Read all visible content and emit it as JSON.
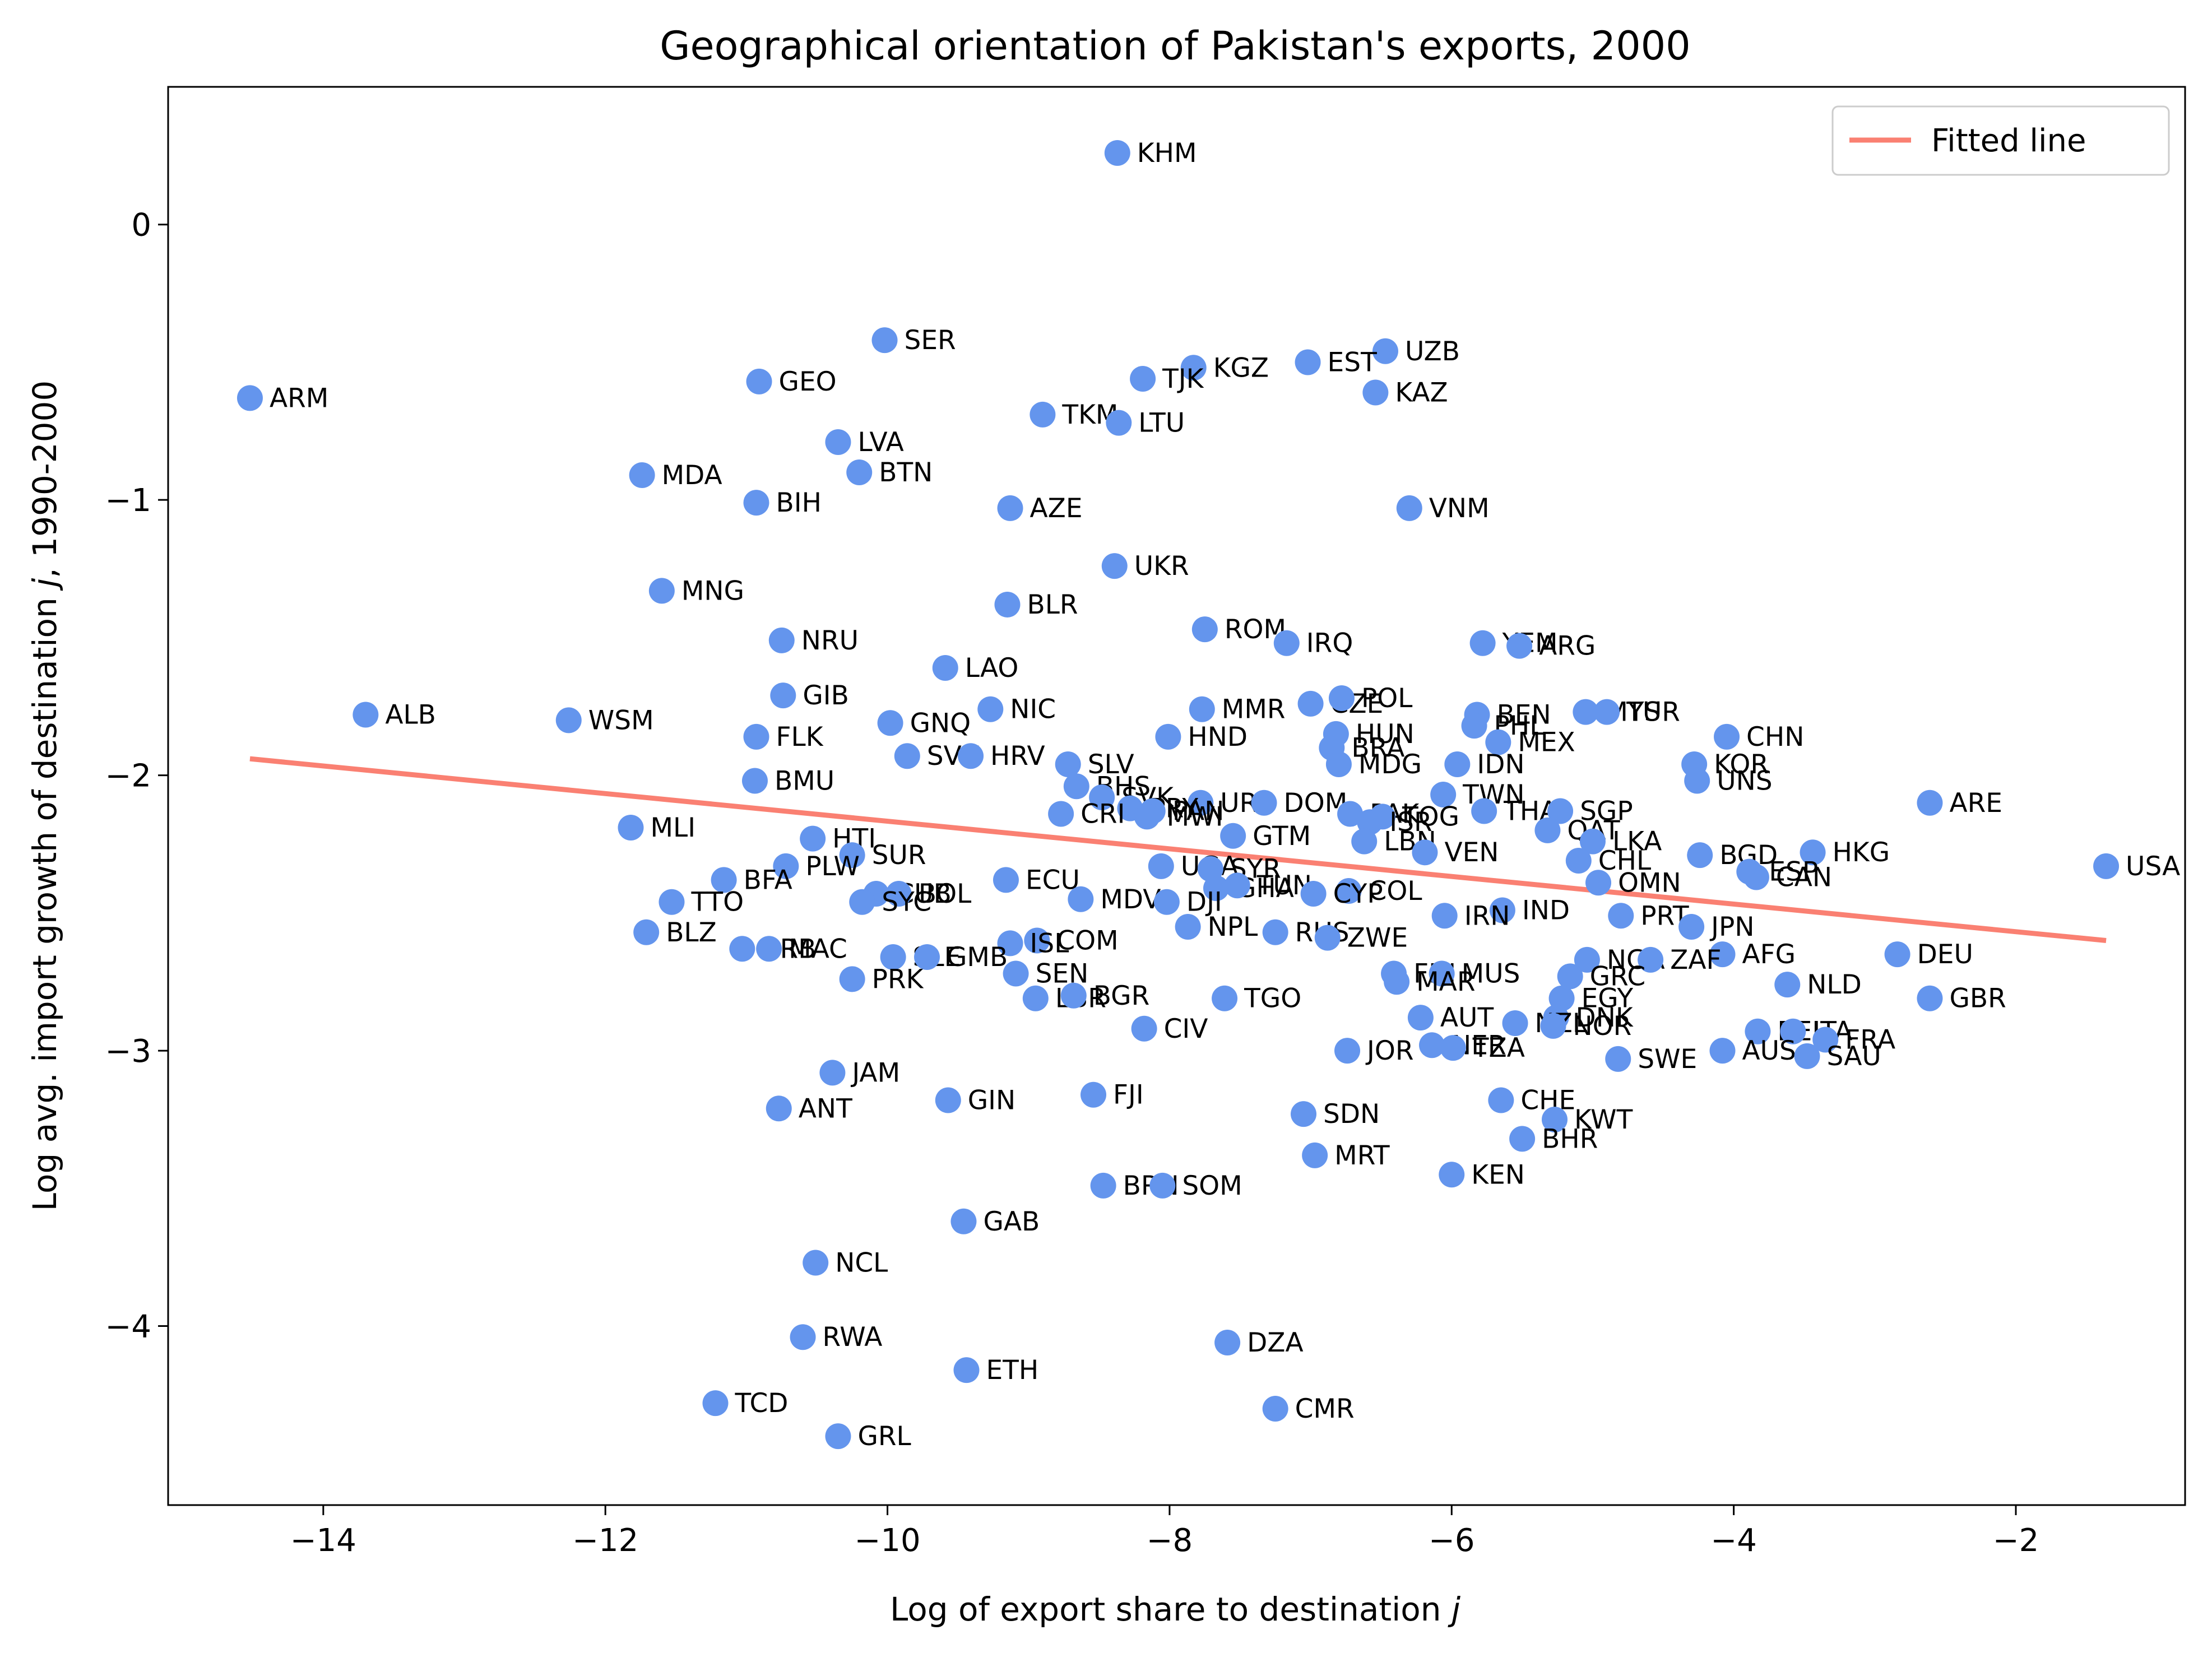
{
  "chart_data": {
    "type": "scatter",
    "title": "Geographical orientation of Pakistan's exports, 2000",
    "xlabel_main": "Log of export share to destination ",
    "xlabel_var": "j",
    "ylabel_main": "Log avg. import growth of destination ",
    "ylabel_var": "j",
    "ylabel_tail": ", 1990-2000",
    "xlim": [
      -15.1,
      -0.8
    ],
    "ylim": [
      -4.65,
      0.5
    ],
    "xticks": [
      -14,
      -12,
      -10,
      -8,
      -6,
      -4,
      -2
    ],
    "yticks": [
      0,
      -1,
      -2,
      -3,
      -4
    ],
    "xtick_labels": [
      "−14",
      "−12",
      "−10",
      "−8",
      "−6",
      "−4",
      "−2"
    ],
    "ytick_labels": [
      "0",
      "−1",
      "−2",
      "−3",
      "−4"
    ],
    "point_color": "#6495ED",
    "line_color": "#FA8072",
    "legend": {
      "label": "Fitted line",
      "position": "upper right"
    },
    "fitted_line": {
      "x": [
        -14.52,
        -1.36
      ],
      "y": [
        -1.94,
        -2.6
      ]
    },
    "points": [
      {
        "label": "KHM",
        "x": -8.37,
        "y": 0.26
      },
      {
        "label": "SER",
        "x": -10.02,
        "y": -0.42
      },
      {
        "label": "GEO",
        "x": -10.91,
        "y": -0.57
      },
      {
        "label": "ARM",
        "x": -14.52,
        "y": -0.63
      },
      {
        "label": "UZB",
        "x": -6.47,
        "y": -0.46
      },
      {
        "label": "EST",
        "x": -7.02,
        "y": -0.5
      },
      {
        "label": "KGZ",
        "x": -7.83,
        "y": -0.52
      },
      {
        "label": "TJK",
        "x": -8.19,
        "y": -0.56
      },
      {
        "label": "KAZ",
        "x": -6.54,
        "y": -0.61
      },
      {
        "label": "TKM",
        "x": -8.9,
        "y": -0.69
      },
      {
        "label": "LTU",
        "x": -8.36,
        "y": -0.72
      },
      {
        "label": "LVA",
        "x": -10.35,
        "y": -0.79
      },
      {
        "label": "MDA",
        "x": -11.74,
        "y": -0.91
      },
      {
        "label": "BTN",
        "x": -10.2,
        "y": -0.9
      },
      {
        "label": "BIH",
        "x": -10.93,
        "y": -1.01
      },
      {
        "label": "AZE",
        "x": -9.13,
        "y": -1.03
      },
      {
        "label": "VNM",
        "x": -6.3,
        "y": -1.03
      },
      {
        "label": "UKR",
        "x": -8.39,
        "y": -1.24
      },
      {
        "label": "MNG",
        "x": -11.6,
        "y": -1.33
      },
      {
        "label": "BLR",
        "x": -9.15,
        "y": -1.38
      },
      {
        "label": "ROM",
        "x": -7.75,
        "y": -1.47
      },
      {
        "label": "IRQ",
        "x": -7.17,
        "y": -1.52
      },
      {
        "label": "NRU",
        "x": -10.75,
        "y": -1.51
      },
      {
        "label": "YEM",
        "x": -5.78,
        "y": -1.52
      },
      {
        "label": "ARG",
        "x": -5.52,
        "y": -1.53
      },
      {
        "label": "LAO",
        "x": -9.59,
        "y": -1.61
      },
      {
        "label": "GIB",
        "x": -10.74,
        "y": -1.71
      },
      {
        "label": "NIC",
        "x": -9.27,
        "y": -1.76
      },
      {
        "label": "MMR",
        "x": -7.77,
        "y": -1.76
      },
      {
        "label": "CZE",
        "x": -7.0,
        "y": -1.74
      },
      {
        "label": "POL",
        "x": -6.78,
        "y": -1.72
      },
      {
        "label": "BEN",
        "x": -5.82,
        "y": -1.78
      },
      {
        "label": "PHL",
        "x": -5.84,
        "y": -1.82
      },
      {
        "label": "MYS",
        "x": -5.05,
        "y": -1.77
      },
      {
        "label": "TUR",
        "x": -4.9,
        "y": -1.77
      },
      {
        "label": "ALB",
        "x": -13.7,
        "y": -1.78
      },
      {
        "label": "WSM",
        "x": -12.26,
        "y": -1.8
      },
      {
        "label": "GNQ",
        "x": -9.98,
        "y": -1.81
      },
      {
        "label": "FLK",
        "x": -10.93,
        "y": -1.86
      },
      {
        "label": "HND",
        "x": -8.01,
        "y": -1.86
      },
      {
        "label": "HUN",
        "x": -6.82,
        "y": -1.85
      },
      {
        "label": "MEX",
        "x": -5.67,
        "y": -1.88
      },
      {
        "label": "CHN",
        "x": -4.05,
        "y": -1.86
      },
      {
        "label": "BRA",
        "x": -6.85,
        "y": -1.9
      },
      {
        "label": "SVN",
        "x": -9.86,
        "y": -1.93
      },
      {
        "label": "HRV",
        "x": -9.41,
        "y": -1.93
      },
      {
        "label": "SLV",
        "x": -8.72,
        "y": -1.96
      },
      {
        "label": "MDG",
        "x": -6.8,
        "y": -1.96
      },
      {
        "label": "IDN",
        "x": -5.96,
        "y": -1.96
      },
      {
        "label": "KOR",
        "x": -4.28,
        "y": -1.96
      },
      {
        "label": "UNS",
        "x": -4.26,
        "y": -2.02
      },
      {
        "label": "BMU",
        "x": -10.94,
        "y": -2.02
      },
      {
        "label": "BHS",
        "x": -8.66,
        "y": -2.04
      },
      {
        "label": "SVK",
        "x": -8.48,
        "y": -2.08
      },
      {
        "label": "TWN",
        "x": -6.06,
        "y": -2.07
      },
      {
        "label": "URY",
        "x": -7.78,
        "y": -2.1
      },
      {
        "label": "DOM",
        "x": -7.33,
        "y": -2.1
      },
      {
        "label": "PRY",
        "x": -8.28,
        "y": -2.12
      },
      {
        "label": "PAN",
        "x": -8.12,
        "y": -2.13
      },
      {
        "label": "MWI",
        "x": -8.16,
        "y": -2.15
      },
      {
        "label": "ARE",
        "x": -2.61,
        "y": -2.1
      },
      {
        "label": "THA",
        "x": -5.77,
        "y": -2.13
      },
      {
        "label": "SGP",
        "x": -5.23,
        "y": -2.13
      },
      {
        "label": "CRI",
        "x": -8.77,
        "y": -2.14
      },
      {
        "label": "PAK",
        "x": -6.72,
        "y": -2.14
      },
      {
        "label": "TOG",
        "x": -6.49,
        "y": -2.15
      },
      {
        "label": "ISR",
        "x": -6.58,
        "y": -2.17
      },
      {
        "label": "QAT",
        "x": -5.32,
        "y": -2.2
      },
      {
        "label": "MLI",
        "x": -11.82,
        "y": -2.19
      },
      {
        "label": "HTI",
        "x": -10.53,
        "y": -2.23
      },
      {
        "label": "GTM",
        "x": -7.55,
        "y": -2.22
      },
      {
        "label": "LKA",
        "x": -5.0,
        "y": -2.24
      },
      {
        "label": "LBN",
        "x": -6.62,
        "y": -2.24
      },
      {
        "label": "SUR",
        "x": -10.25,
        "y": -2.29
      },
      {
        "label": "VEN",
        "x": -6.19,
        "y": -2.28
      },
      {
        "label": "BGD",
        "x": -4.24,
        "y": -2.29
      },
      {
        "label": "HKG",
        "x": -3.44,
        "y": -2.28
      },
      {
        "label": "CHL",
        "x": -5.1,
        "y": -2.31
      },
      {
        "label": "USA",
        "x": -1.36,
        "y": -2.33
      },
      {
        "label": "PLW",
        "x": -10.72,
        "y": -2.33
      },
      {
        "label": "UGA",
        "x": -8.06,
        "y": -2.33
      },
      {
        "label": "SYR",
        "x": -7.71,
        "y": -2.34
      },
      {
        "label": "ESP",
        "x": -3.89,
        "y": -2.35
      },
      {
        "label": "CAN",
        "x": -3.84,
        "y": -2.37
      },
      {
        "label": "BFA",
        "x": -11.16,
        "y": -2.38
      },
      {
        "label": "ECU",
        "x": -9.16,
        "y": -2.38
      },
      {
        "label": "OMN",
        "x": -4.96,
        "y": -2.39
      },
      {
        "label": "GHA",
        "x": -7.67,
        "y": -2.41
      },
      {
        "label": "TUN",
        "x": -7.52,
        "y": -2.4
      },
      {
        "label": "COL",
        "x": -6.73,
        "y": -2.42
      },
      {
        "label": "CYP",
        "x": -6.98,
        "y": -2.43
      },
      {
        "label": "CUB",
        "x": -10.08,
        "y": -2.43
      },
      {
        "label": "BOL",
        "x": -9.92,
        "y": -2.43
      },
      {
        "label": "TTO",
        "x": -11.53,
        "y": -2.46
      },
      {
        "label": "SYC",
        "x": -10.18,
        "y": -2.46
      },
      {
        "label": "MDV",
        "x": -8.63,
        "y": -2.45
      },
      {
        "label": "DJI",
        "x": -8.02,
        "y": -2.46
      },
      {
        "label": "IND",
        "x": -5.64,
        "y": -2.49
      },
      {
        "label": "IRN",
        "x": -6.05,
        "y": -2.51
      },
      {
        "label": "PRT",
        "x": -4.8,
        "y": -2.51
      },
      {
        "label": "NPL",
        "x": -7.87,
        "y": -2.55
      },
      {
        "label": "JPN",
        "x": -4.3,
        "y": -2.55
      },
      {
        "label": "BLZ",
        "x": -11.71,
        "y": -2.57
      },
      {
        "label": "RUS",
        "x": -7.25,
        "y": -2.57
      },
      {
        "label": "ZWE",
        "x": -6.88,
        "y": -2.59
      },
      {
        "label": "COM",
        "x": -8.94,
        "y": -2.6
      },
      {
        "label": "ISL",
        "x": -9.13,
        "y": -2.61
      },
      {
        "label": "BRB",
        "x": -11.03,
        "y": -2.63
      },
      {
        "label": "MAC",
        "x": -10.84,
        "y": -2.63
      },
      {
        "label": "SLE",
        "x": -9.96,
        "y": -2.66
      },
      {
        "label": "GMB",
        "x": -9.72,
        "y": -2.66
      },
      {
        "label": "AFG",
        "x": -4.08,
        "y": -2.65
      },
      {
        "label": "DEU",
        "x": -2.84,
        "y": -2.65
      },
      {
        "label": "NGA",
        "x": -5.04,
        "y": -2.67
      },
      {
        "label": "ZAF",
        "x": -4.59,
        "y": -2.67
      },
      {
        "label": "SEN",
        "x": -9.09,
        "y": -2.72
      },
      {
        "label": "FIN",
        "x": -6.41,
        "y": -2.72
      },
      {
        "label": "MUS",
        "x": -6.07,
        "y": -2.72
      },
      {
        "label": "GRC",
        "x": -5.16,
        "y": -2.73
      },
      {
        "label": "PRK",
        "x": -10.25,
        "y": -2.74
      },
      {
        "label": "MAR",
        "x": -6.39,
        "y": -2.75
      },
      {
        "label": "NLD",
        "x": -3.62,
        "y": -2.76
      },
      {
        "label": "LBR",
        "x": -8.95,
        "y": -2.81
      },
      {
        "label": "BGR",
        "x": -8.68,
        "y": -2.8
      },
      {
        "label": "TGO",
        "x": -7.61,
        "y": -2.81
      },
      {
        "label": "EGY",
        "x": -5.22,
        "y": -2.81
      },
      {
        "label": "GBR",
        "x": -2.61,
        "y": -2.81
      },
      {
        "label": "AUT",
        "x": -6.22,
        "y": -2.88
      },
      {
        "label": "DNK",
        "x": -5.26,
        "y": -2.88
      },
      {
        "label": "NZL",
        "x": -5.55,
        "y": -2.9
      },
      {
        "label": "NOR",
        "x": -5.28,
        "y": -2.91
      },
      {
        "label": "CIV",
        "x": -8.18,
        "y": -2.92
      },
      {
        "label": "BEL",
        "x": -3.83,
        "y": -2.93
      },
      {
        "label": "ITA",
        "x": -3.58,
        "y": -2.93
      },
      {
        "label": "FRA",
        "x": -3.35,
        "y": -2.96
      },
      {
        "label": "NER",
        "x": -6.14,
        "y": -2.98
      },
      {
        "label": "TZA",
        "x": -5.99,
        "y": -2.99
      },
      {
        "label": "JOR",
        "x": -6.74,
        "y": -3.0
      },
      {
        "label": "AUS",
        "x": -4.08,
        "y": -3.0
      },
      {
        "label": "SAU",
        "x": -3.48,
        "y": -3.02
      },
      {
        "label": "SWE",
        "x": -4.82,
        "y": -3.03
      },
      {
        "label": "JAM",
        "x": -10.39,
        "y": -3.08
      },
      {
        "label": "FJI",
        "x": -8.54,
        "y": -3.16
      },
      {
        "label": "GIN",
        "x": -9.57,
        "y": -3.18
      },
      {
        "label": "CHE",
        "x": -5.65,
        "y": -3.18
      },
      {
        "label": "ANT",
        "x": -10.77,
        "y": -3.21
      },
      {
        "label": "SDN",
        "x": -7.05,
        "y": -3.23
      },
      {
        "label": "KWT",
        "x": -5.27,
        "y": -3.25
      },
      {
        "label": "BHR",
        "x": -5.5,
        "y": -3.32
      },
      {
        "label": "MRT",
        "x": -6.97,
        "y": -3.38
      },
      {
        "label": "KEN",
        "x": -6.0,
        "y": -3.45
      },
      {
        "label": "BRN",
        "x": -8.47,
        "y": -3.49
      },
      {
        "label": "SOM",
        "x": -8.05,
        "y": -3.49
      },
      {
        "label": "GAB",
        "x": -9.46,
        "y": -3.62
      },
      {
        "label": "NCL",
        "x": -10.51,
        "y": -3.77
      },
      {
        "label": "RWA",
        "x": -10.6,
        "y": -4.04
      },
      {
        "label": "DZA",
        "x": -7.59,
        "y": -4.06
      },
      {
        "label": "ETH",
        "x": -9.44,
        "y": -4.16
      },
      {
        "label": "TCD",
        "x": -11.22,
        "y": -4.28
      },
      {
        "label": "CMR",
        "x": -7.25,
        "y": -4.3
      },
      {
        "label": "GRL",
        "x": -10.35,
        "y": -4.4
      }
    ]
  }
}
